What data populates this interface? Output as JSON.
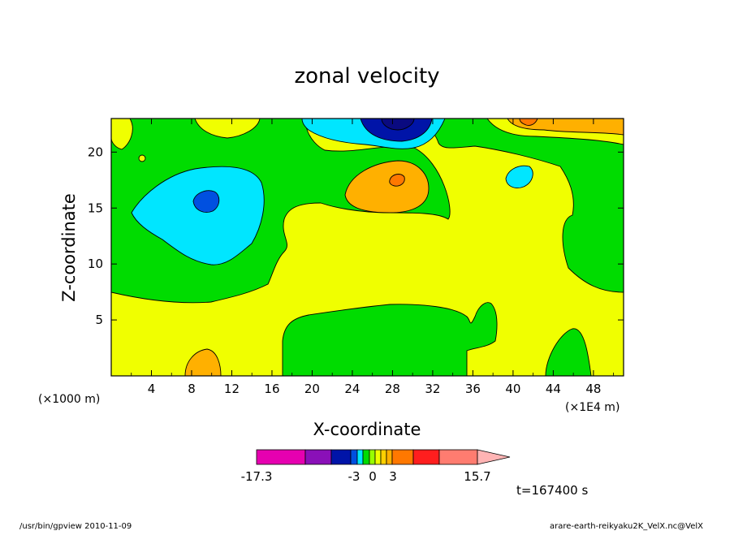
{
  "chart_data": {
    "type": "heatmap",
    "title": "zonal velocity",
    "xlabel": "X-coordinate",
    "ylabel": "Z-coordinate",
    "x_unit_left": "(×1000 m)",
    "x_unit_right": "(×1E4 m)",
    "xlim": [
      0,
      51
    ],
    "ylim": [
      0,
      23
    ],
    "x_ticks": [
      4,
      8,
      12,
      16,
      20,
      24,
      28,
      32,
      36,
      40,
      44,
      48
    ],
    "y_ticks": [
      5,
      10,
      15,
      20
    ],
    "x_tick_labels": [
      "4",
      "8",
      "12",
      "16",
      "20",
      "24",
      "28",
      "32",
      "36",
      "40",
      "44",
      "48"
    ],
    "y_tick_labels": [
      "5",
      "10",
      "15",
      "20"
    ],
    "colorbar": {
      "min": -17.3,
      "max": 15.7,
      "labels": [
        "-17.3",
        "-3",
        "0",
        "3",
        "15.7"
      ],
      "colors": [
        "#e600b0",
        "#8a10b8",
        "#0014a8",
        "#0050e0",
        "#00e6ff",
        "#00dc00",
        "#98ff00",
        "#f0ff00",
        "#ffd000",
        "#ffb000",
        "#ff7800",
        "#ff1e1e",
        "#ff7c70",
        "#ffb4b4"
      ]
    },
    "time_label": "t=167400 s",
    "regions": [
      {
        "name": "background",
        "level": "0 to 1",
        "color": "#f0ff00"
      },
      {
        "name": "upper-left band",
        "level": "-1 to 0",
        "color": "#00dc00"
      },
      {
        "name": "left cyan cell",
        "level": "-3 to -1",
        "color": "#00e6ff"
      },
      {
        "name": "left cyan core",
        "level": "-5 to -3",
        "color": "#0050e0"
      },
      {
        "name": "top center jet",
        "level": "below -5",
        "color": "#0014a8"
      },
      {
        "name": "orange cell x28 z17",
        "level": "1 to 3",
        "color": "#ffb000"
      },
      {
        "name": "bottom green region",
        "level": "-1 to 0",
        "color": "#00dc00"
      }
    ]
  },
  "footer": {
    "left": "/usr/bin/gpview   2010-11-09",
    "right": "arare-earth-reikyaku2K_VelX.nc@VelX"
  }
}
